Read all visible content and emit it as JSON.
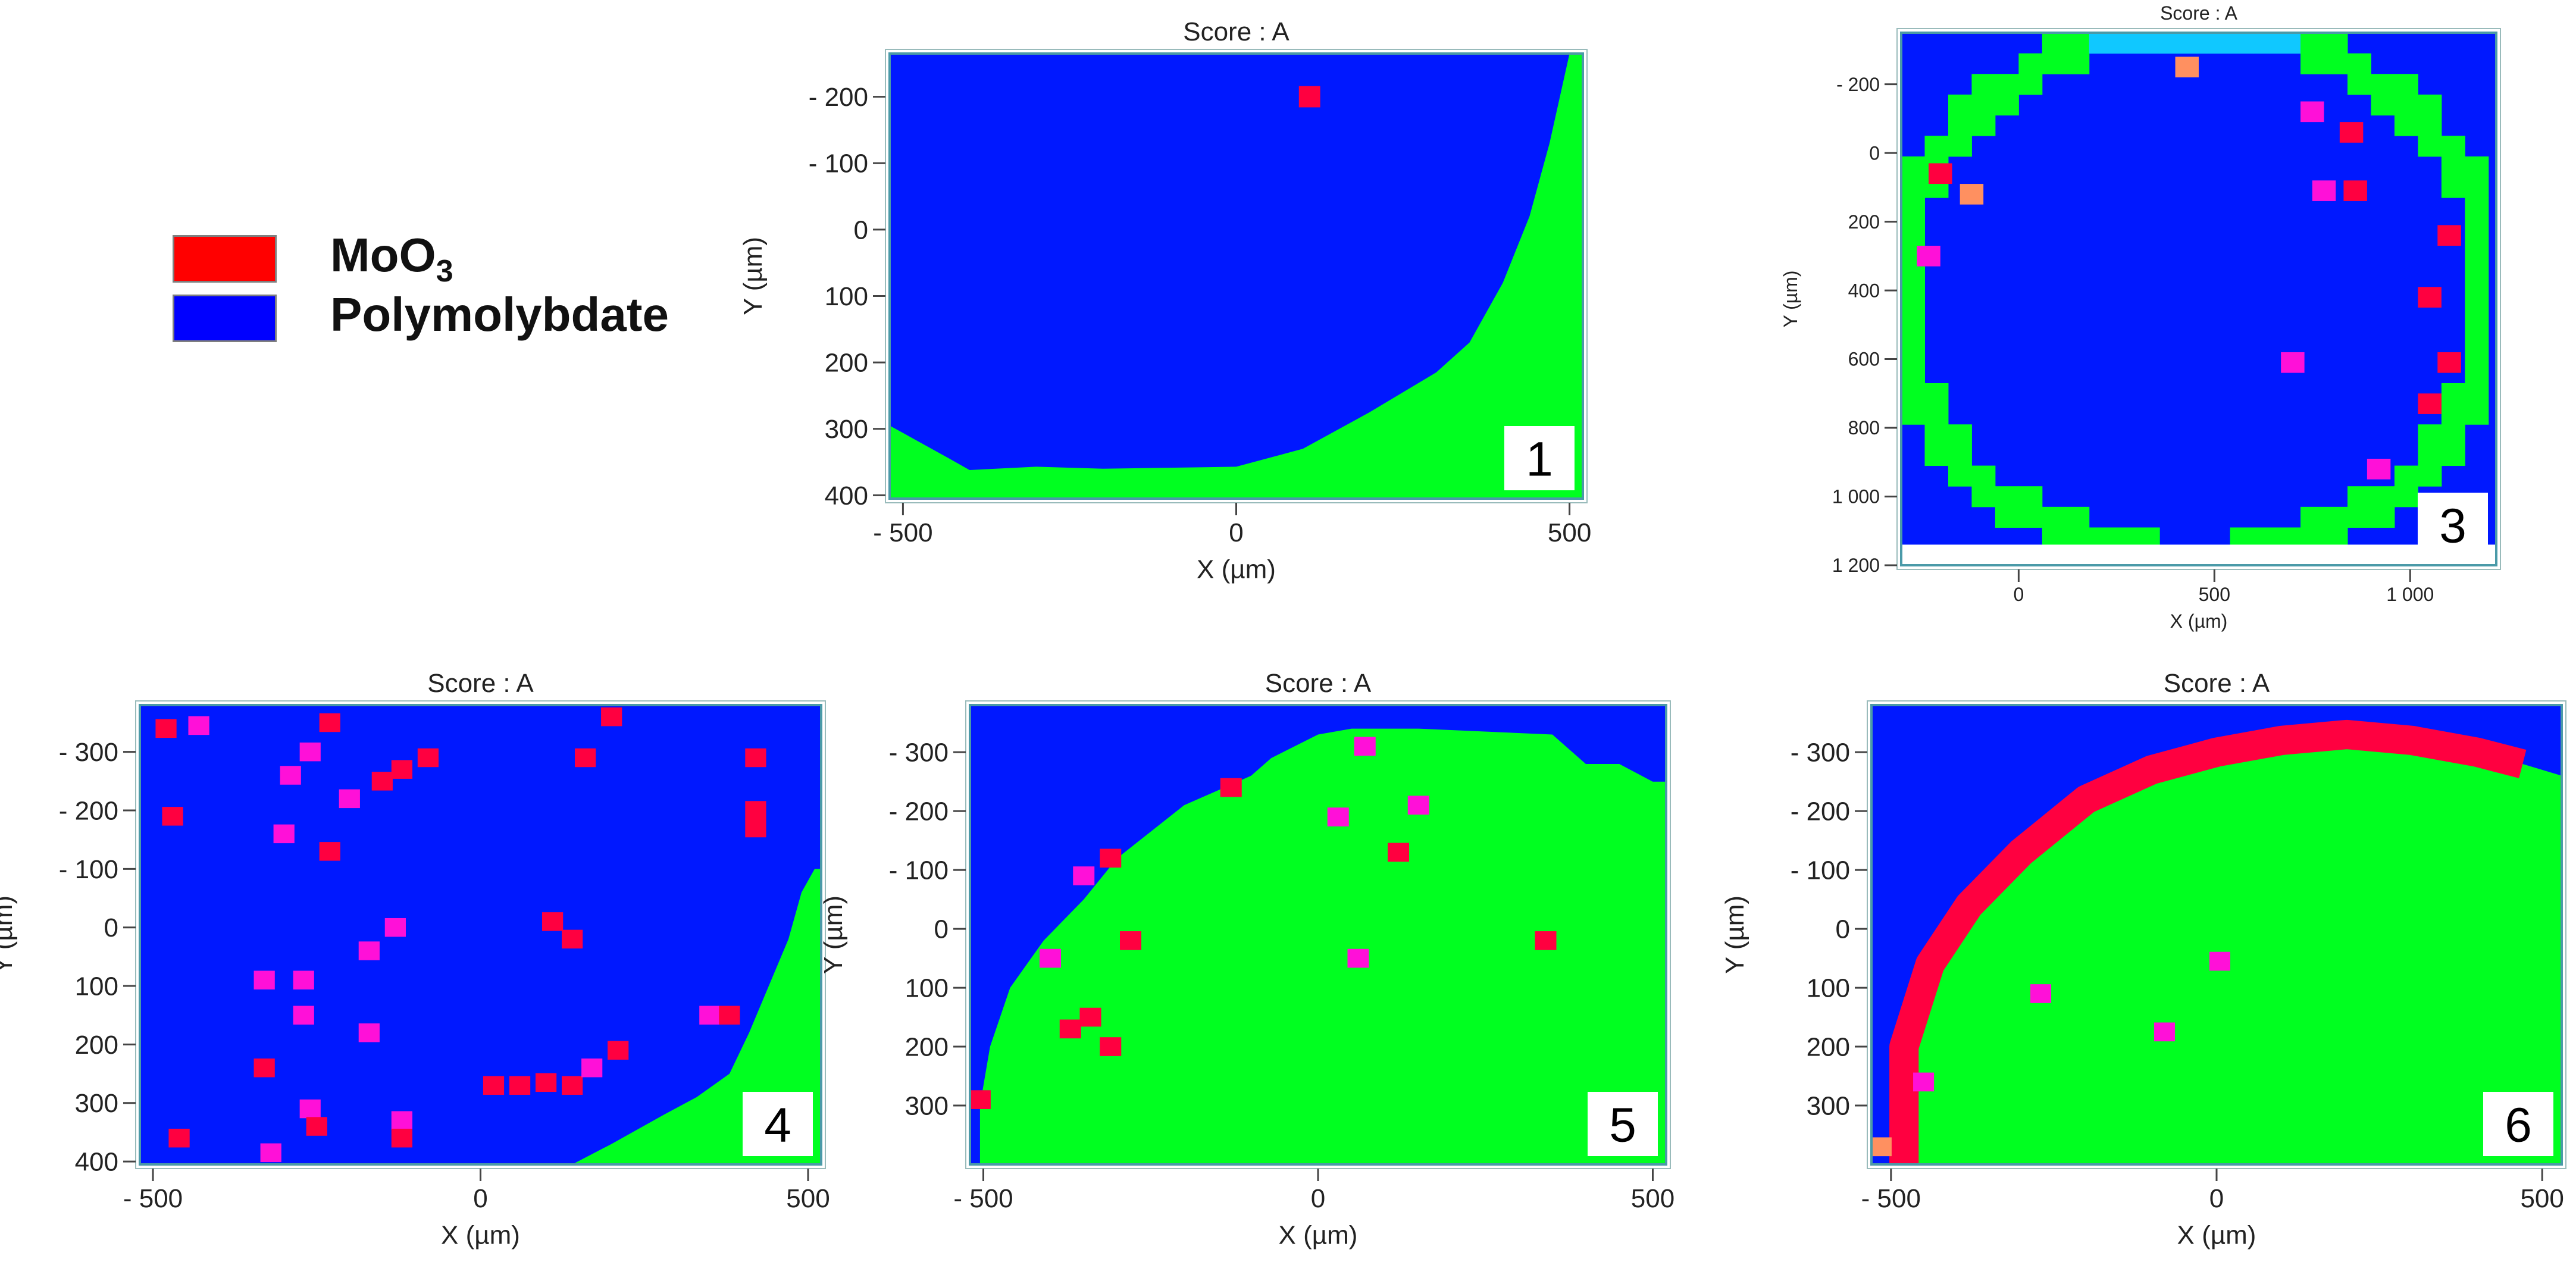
{
  "legend": {
    "items": [
      {
        "label": "MoO",
        "subscript": "3",
        "color": "#ff0000"
      },
      {
        "label": "Polymolybdate",
        "subscript": "",
        "color": "#0000ff"
      }
    ]
  },
  "colors": {
    "polymolybdate": "#0018ff",
    "moo3": "#ff0040",
    "background": "#00ff20",
    "mixed_magenta": "#ff10d8",
    "cyan": "#10c8ff",
    "orange": "#ff9060",
    "frame": "#4a9aa8"
  },
  "chart_data": [
    {
      "panel": "1",
      "type": "heatmap",
      "title": "Score : A",
      "xlabel": "X (µm)",
      "ylabel": "Y (µm)",
      "xlim": [
        -520,
        520
      ],
      "ylim": [
        -265,
        405
      ],
      "y_inverted": true,
      "xticks": [
        {
          "v": -500,
          "t": "- 500"
        },
        {
          "v": 0,
          "t": "0"
        },
        {
          "v": 500,
          "t": "500"
        }
      ],
      "yticks": [
        {
          "v": -200,
          "t": "- 200"
        },
        {
          "v": -100,
          "t": "- 100"
        },
        {
          "v": 0,
          "t": "0"
        },
        {
          "v": 100,
          "t": "100"
        },
        {
          "v": 200,
          "t": "200"
        },
        {
          "v": 300,
          "t": "300"
        },
        {
          "v": 400,
          "t": "400"
        }
      ],
      "regions": {
        "outside_color": "#00ff20",
        "inside_color": "#0018ff",
        "boundary": [
          [
            -520,
            295
          ],
          [
            -430,
            345
          ],
          [
            -400,
            362
          ],
          [
            -300,
            357
          ],
          [
            -200,
            360
          ],
          [
            0,
            357
          ],
          [
            100,
            330
          ],
          [
            200,
            275
          ],
          [
            300,
            215
          ],
          [
            350,
            170
          ],
          [
            400,
            80
          ],
          [
            440,
            -20
          ],
          [
            470,
            -130
          ],
          [
            500,
            -265
          ],
          [
            520,
            -265
          ],
          [
            520,
            405
          ],
          [
            -520,
            405
          ]
        ]
      },
      "spots": [
        {
          "x": 110,
          "y": -200,
          "c": "#ff0040"
        }
      ]
    },
    {
      "panel": "3",
      "type": "heatmap",
      "title": "Score : A",
      "xlabel": "X (µm)",
      "ylabel": "Y (µm)",
      "xlim": [
        -300,
        1220
      ],
      "ylim": [
        -350,
        1200
      ],
      "y_inverted": true,
      "xticks": [
        {
          "v": 0,
          "t": "0"
        },
        {
          "v": 500,
          "t": "500"
        },
        {
          "v": 1000,
          "t": "1 000"
        }
      ],
      "yticks": [
        {
          "v": -200,
          "t": "- 200"
        },
        {
          "v": 0,
          "t": "0"
        },
        {
          "v": 200,
          "t": "200"
        },
        {
          "v": 400,
          "t": "400"
        },
        {
          "v": 600,
          "t": "600"
        },
        {
          "v": 800,
          "t": "800"
        },
        {
          "v": 1000,
          "t": "1 000"
        },
        {
          "v": 1200,
          "t": "1 200"
        }
      ],
      "grid": {
        "cells": 25,
        "size": 60,
        "x0": -300,
        "y0": -350,
        "cx": 450,
        "cy": 405,
        "r_outer": 780,
        "r_inner": 720
      },
      "blank_below": 1140,
      "spots": [
        {
          "x": 430,
          "y": -250,
          "c": "#ff9060"
        },
        {
          "x": 750,
          "y": -120,
          "c": "#ff10d8"
        },
        {
          "x": 850,
          "y": -60,
          "c": "#ff0040"
        },
        {
          "x": -120,
          "y": 120,
          "c": "#ff9060"
        },
        {
          "x": -200,
          "y": 60,
          "c": "#ff0040"
        },
        {
          "x": 780,
          "y": 110,
          "c": "#ff10d8"
        },
        {
          "x": 860,
          "y": 110,
          "c": "#ff0040"
        },
        {
          "x": 1100,
          "y": 240,
          "c": "#ff0040"
        },
        {
          "x": 1050,
          "y": 420,
          "c": "#ff0040"
        },
        {
          "x": 700,
          "y": 610,
          "c": "#ff10d8"
        },
        {
          "x": 1100,
          "y": 610,
          "c": "#ff0040"
        },
        {
          "x": 1050,
          "y": 730,
          "c": "#ff0040"
        },
        {
          "x": 920,
          "y": 920,
          "c": "#ff10d8"
        },
        {
          "x": -230,
          "y": 300,
          "c": "#ff10d8"
        }
      ]
    },
    {
      "panel": "4",
      "type": "heatmap",
      "title": "Score : A",
      "xlabel": "X (µm)",
      "ylabel": "Y (µm)",
      "xlim": [
        -520,
        520
      ],
      "ylim": [
        -380,
        405
      ],
      "y_inverted": true,
      "xticks": [
        {
          "v": -500,
          "t": "- 500"
        },
        {
          "v": 0,
          "t": "0"
        },
        {
          "v": 500,
          "t": "500"
        }
      ],
      "yticks": [
        {
          "v": -300,
          "t": "- 300"
        },
        {
          "v": -200,
          "t": "- 200"
        },
        {
          "v": -100,
          "t": "- 100"
        },
        {
          "v": 0,
          "t": "0"
        },
        {
          "v": 100,
          "t": "100"
        },
        {
          "v": 200,
          "t": "200"
        },
        {
          "v": 300,
          "t": "300"
        },
        {
          "v": 400,
          "t": "400"
        }
      ],
      "regions": {
        "outside_color": "#00ff20",
        "inside_color": "#0018ff",
        "boundary": [
          [
            140,
            405
          ],
          [
            200,
            370
          ],
          [
            280,
            320
          ],
          [
            330,
            290
          ],
          [
            380,
            250
          ],
          [
            410,
            180
          ],
          [
            440,
            100
          ],
          [
            470,
            20
          ],
          [
            490,
            -60
          ],
          [
            510,
            -100
          ],
          [
            520,
            -100
          ],
          [
            520,
            405
          ]
        ]
      },
      "spots": [
        {
          "x": -480,
          "y": -340,
          "c": "#ff0040"
        },
        {
          "x": -430,
          "y": -345,
          "c": "#ff10d8"
        },
        {
          "x": -470,
          "y": -190,
          "c": "#ff0040"
        },
        {
          "x": -290,
          "y": -260,
          "c": "#ff10d8"
        },
        {
          "x": -260,
          "y": -300,
          "c": "#ff10d8"
        },
        {
          "x": -230,
          "y": -350,
          "c": "#ff0040"
        },
        {
          "x": -150,
          "y": -250,
          "c": "#ff0040"
        },
        {
          "x": -120,
          "y": -270,
          "c": "#ff0040"
        },
        {
          "x": -80,
          "y": -290,
          "c": "#ff0040"
        },
        {
          "x": -200,
          "y": -220,
          "c": "#ff10d8"
        },
        {
          "x": -300,
          "y": -160,
          "c": "#ff10d8"
        },
        {
          "x": -230,
          "y": -130,
          "c": "#ff0040"
        },
        {
          "x": 160,
          "y": -290,
          "c": "#ff0040"
        },
        {
          "x": 200,
          "y": -360,
          "c": "#ff0040"
        },
        {
          "x": 420,
          "y": -290,
          "c": "#ff0040"
        },
        {
          "x": 420,
          "y": -200,
          "c": "#ff0040"
        },
        {
          "x": 420,
          "y": -170,
          "c": "#ff0040"
        },
        {
          "x": -170,
          "y": 40,
          "c": "#ff10d8"
        },
        {
          "x": -130,
          "y": 0,
          "c": "#ff10d8"
        },
        {
          "x": 110,
          "y": -10,
          "c": "#ff0040"
        },
        {
          "x": 140,
          "y": 20,
          "c": "#ff0040"
        },
        {
          "x": -330,
          "y": 90,
          "c": "#ff10d8"
        },
        {
          "x": -270,
          "y": 90,
          "c": "#ff10d8"
        },
        {
          "x": -270,
          "y": 150,
          "c": "#ff10d8"
        },
        {
          "x": -170,
          "y": 180,
          "c": "#ff10d8"
        },
        {
          "x": -330,
          "y": 240,
          "c": "#ff0040"
        },
        {
          "x": -260,
          "y": 310,
          "c": "#ff10d8"
        },
        {
          "x": -250,
          "y": 340,
          "c": "#ff0040"
        },
        {
          "x": -120,
          "y": 330,
          "c": "#ff10d8"
        },
        {
          "x": -120,
          "y": 360,
          "c": "#ff0040"
        },
        {
          "x": -460,
          "y": 360,
          "c": "#ff0040"
        },
        {
          "x": -320,
          "y": 385,
          "c": "#ff10d8"
        },
        {
          "x": 20,
          "y": 270,
          "c": "#ff0040"
        },
        {
          "x": 60,
          "y": 270,
          "c": "#ff0040"
        },
        {
          "x": 100,
          "y": 265,
          "c": "#ff0040"
        },
        {
          "x": 140,
          "y": 270,
          "c": "#ff0040"
        },
        {
          "x": 210,
          "y": 210,
          "c": "#ff0040"
        },
        {
          "x": 170,
          "y": 240,
          "c": "#ff10d8"
        },
        {
          "x": 350,
          "y": 150,
          "c": "#ff10d8"
        },
        {
          "x": 380,
          "y": 150,
          "c": "#ff0040"
        }
      ]
    },
    {
      "panel": "5",
      "type": "heatmap",
      "title": "Score : A",
      "xlabel": "X (µm)",
      "ylabel": "Y (µm)",
      "xlim": [
        -520,
        520
      ],
      "ylim": [
        -380,
        400
      ],
      "y_inverted": true,
      "xticks": [
        {
          "v": -500,
          "t": "- 500"
        },
        {
          "v": 0,
          "t": "0"
        },
        {
          "v": 500,
          "t": "500"
        }
      ],
      "yticks": [
        {
          "v": -300,
          "t": "- 300"
        },
        {
          "v": -200,
          "t": "- 200"
        },
        {
          "v": -100,
          "t": "- 100"
        },
        {
          "v": 0,
          "t": "0"
        },
        {
          "v": 100,
          "t": "100"
        },
        {
          "v": 200,
          "t": "200"
        },
        {
          "v": 300,
          "t": "300"
        }
      ],
      "regions": {
        "outside_color": "#0018ff",
        "inside_color": "#00ff20",
        "boundary": [
          [
            -520,
            400
          ],
          [
            -505,
            400
          ],
          [
            -505,
            300
          ],
          [
            -490,
            200
          ],
          [
            -460,
            100
          ],
          [
            -410,
            20
          ],
          [
            -350,
            -50
          ],
          [
            -300,
            -120
          ],
          [
            -200,
            -210
          ],
          [
            -100,
            -260
          ],
          [
            -70,
            -290
          ],
          [
            0,
            -330
          ],
          [
            50,
            -340
          ],
          [
            150,
            -340
          ],
          [
            350,
            -330
          ],
          [
            400,
            -280
          ],
          [
            450,
            -280
          ],
          [
            500,
            -250
          ],
          [
            520,
            -250
          ],
          [
            520,
            -380
          ],
          [
            -520,
            -380
          ]
        ]
      },
      "spots": [
        {
          "x": -505,
          "y": 290,
          "c": "#ff0040"
        },
        {
          "x": -130,
          "y": -240,
          "c": "#ff0040"
        },
        {
          "x": -310,
          "y": -120,
          "c": "#ff0040"
        },
        {
          "x": -350,
          "y": -90,
          "c": "#ff10d8"
        },
        {
          "x": 70,
          "y": -310,
          "c": "#ff10d8"
        },
        {
          "x": 30,
          "y": -190,
          "c": "#ff10d8"
        },
        {
          "x": 150,
          "y": -210,
          "c": "#ff10d8"
        },
        {
          "x": 120,
          "y": -130,
          "c": "#ff0040"
        },
        {
          "x": -280,
          "y": 20,
          "c": "#ff0040"
        },
        {
          "x": -400,
          "y": 50,
          "c": "#ff10d8"
        },
        {
          "x": 60,
          "y": 50,
          "c": "#ff10d8"
        },
        {
          "x": 340,
          "y": 20,
          "c": "#ff0040"
        },
        {
          "x": -340,
          "y": 150,
          "c": "#ff0040"
        },
        {
          "x": -370,
          "y": 170,
          "c": "#ff0040"
        },
        {
          "x": -310,
          "y": 200,
          "c": "#ff0040"
        }
      ]
    },
    {
      "panel": "6",
      "type": "heatmap",
      "title": "Score : A",
      "xlabel": "X (µm)",
      "ylabel": "Y (µm)",
      "xlim": [
        -530,
        530
      ],
      "ylim": [
        -380,
        400
      ],
      "y_inverted": true,
      "xticks": [
        {
          "v": -500,
          "t": "- 500"
        },
        {
          "v": 0,
          "t": "0"
        },
        {
          "v": 500,
          "t": "500"
        }
      ],
      "yticks": [
        {
          "v": -300,
          "t": "- 300"
        },
        {
          "v": -200,
          "t": "- 200"
        },
        {
          "v": -100,
          "t": "- 100"
        },
        {
          "v": 0,
          "t": "0"
        },
        {
          "v": 100,
          "t": "100"
        },
        {
          "v": 200,
          "t": "200"
        },
        {
          "v": 300,
          "t": "300"
        }
      ],
      "regions": {
        "outside_color": "#0018ff",
        "inside_color": "#00ff20",
        "boundary": [
          [
            -530,
            400
          ],
          [
            -480,
            400
          ],
          [
            -480,
            200
          ],
          [
            -440,
            60
          ],
          [
            -380,
            -40
          ],
          [
            -300,
            -130
          ],
          [
            -200,
            -220
          ],
          [
            -100,
            -270
          ],
          [
            0,
            -300
          ],
          [
            100,
            -320
          ],
          [
            200,
            -330
          ],
          [
            300,
            -320
          ],
          [
            400,
            -300
          ],
          [
            470,
            -280
          ],
          [
            530,
            -260
          ],
          [
            530,
            -380
          ],
          [
            -530,
            -380
          ]
        ]
      },
      "band": {
        "color": "#ff0040",
        "width": 45
      },
      "spots": [
        {
          "x": -515,
          "y": 370,
          "c": "#ff9060"
        },
        {
          "x": -450,
          "y": 260,
          "c": "#ff10d8"
        },
        {
          "x": -270,
          "y": 110,
          "c": "#ff10d8"
        },
        {
          "x": 5,
          "y": 55,
          "c": "#ff10d8"
        },
        {
          "x": -80,
          "y": 175,
          "c": "#ff10d8"
        }
      ]
    }
  ],
  "panel_labels": [
    "1",
    "3",
    "4",
    "5",
    "6"
  ]
}
